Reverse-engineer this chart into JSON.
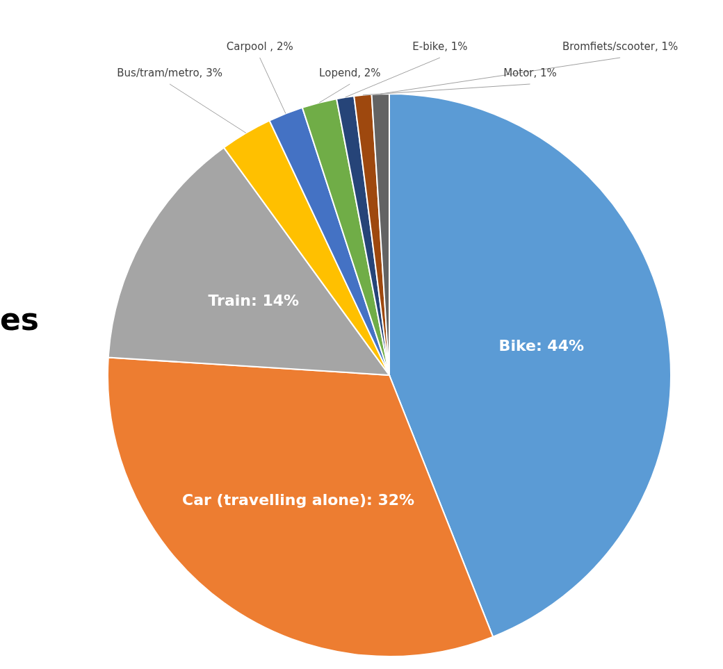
{
  "chart_data": {
    "type": "pie",
    "categories": [
      "Bike: 44%",
      "Car (travelling alone): 32%",
      "Train: 14%",
      "Bus/tram/metro, 3%",
      "Carpool , 2%",
      "Lopend, 2%",
      "E-bike, 1%",
      "Motor, 1%",
      "Bromfiets/scooter, 1%"
    ],
    "values": [
      44,
      32,
      14,
      3,
      2,
      2,
      1,
      1,
      1
    ],
    "colors": [
      "#5b9bd5",
      "#ed7d31",
      "#a5a5a5",
      "#ffc000",
      "#4472c4",
      "#70ad47",
      "#264478",
      "#9e480e",
      "#636363"
    ],
    "annotations": [
      "es"
    ]
  }
}
